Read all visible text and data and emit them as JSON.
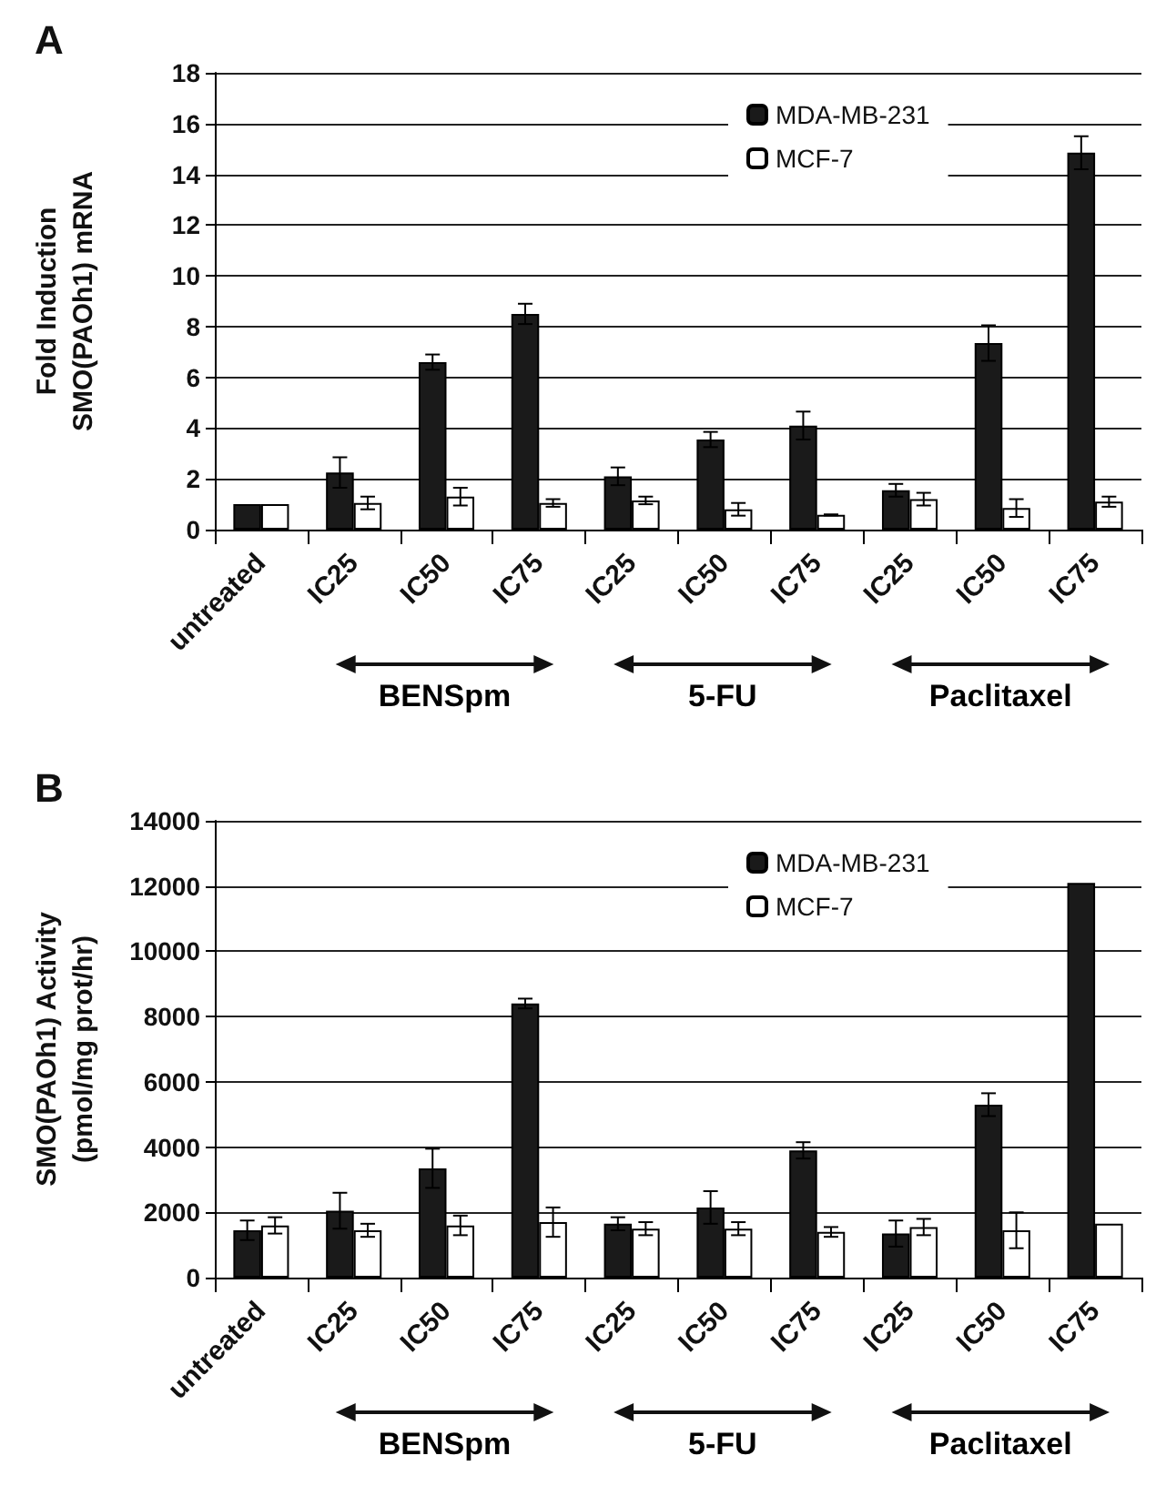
{
  "chart_data": [
    {
      "type": "bar",
      "title": "A",
      "ylabel": "Fold Induction\nSMO(PAOh1) mRNA",
      "categories": [
        "untreated",
        "IC25",
        "IC50",
        "IC75",
        "IC25",
        "IC50",
        "IC75",
        "IC25",
        "IC50",
        "IC75"
      ],
      "series": [
        {
          "name": "MDA-MB-231",
          "color": "#1a1a1a",
          "values": [
            1.0,
            2.25,
            6.6,
            8.5,
            2.1,
            3.55,
            4.1,
            1.55,
            7.35,
            14.85
          ],
          "errors": [
            null,
            0.6,
            0.3,
            0.4,
            0.35,
            0.3,
            0.55,
            0.25,
            0.7,
            0.65
          ]
        },
        {
          "name": "MCF-7",
          "color": "#ffffff",
          "values": [
            1.0,
            1.05,
            1.3,
            1.05,
            1.15,
            0.8,
            0.58,
            1.2,
            0.85,
            1.1
          ],
          "errors": [
            null,
            0.25,
            0.35,
            0.15,
            0.15,
            0.25,
            0.02,
            0.25,
            0.35,
            0.2
          ]
        }
      ],
      "ylim": [
        0,
        18
      ],
      "yticks": [
        0,
        2,
        4,
        6,
        8,
        10,
        12,
        14,
        16,
        18
      ],
      "grid": "y",
      "legend": "top right",
      "annotations": [
        "BENSpm",
        "5-FU",
        "Paclitaxel"
      ]
    },
    {
      "type": "bar",
      "title": "B",
      "ylabel": "SMO(PAOh1) Activity\n(pmol/mg prot/hr)",
      "categories": [
        "untreated",
        "IC25",
        "IC50",
        "IC75",
        "IC25",
        "IC50",
        "IC75",
        "IC25",
        "IC50",
        "IC75"
      ],
      "series": [
        {
          "name": "MDA-MB-231",
          "color": "#1a1a1a",
          "values": [
            1450,
            2050,
            3350,
            8400,
            1650,
            2150,
            3900,
            1350,
            5300,
            12100
          ],
          "errors": [
            300,
            550,
            600,
            150,
            200,
            500,
            250,
            400,
            350,
            null
          ]
        },
        {
          "name": "MCF-7",
          "color": "#ffffff",
          "values": [
            1600,
            1450,
            1600,
            1700,
            1500,
            1500,
            1400,
            1550,
            1450,
            1650
          ],
          "errors": [
            250,
            200,
            300,
            450,
            200,
            200,
            150,
            250,
            550,
            null
          ]
        }
      ],
      "ylim": [
        0,
        14000
      ],
      "yticks": [
        0,
        2000,
        4000,
        6000,
        8000,
        10000,
        12000,
        14000
      ],
      "grid": "y",
      "legend": "top right",
      "annotations": [
        "BENSpm",
        "5-FU",
        "Paclitaxel"
      ]
    }
  ]
}
